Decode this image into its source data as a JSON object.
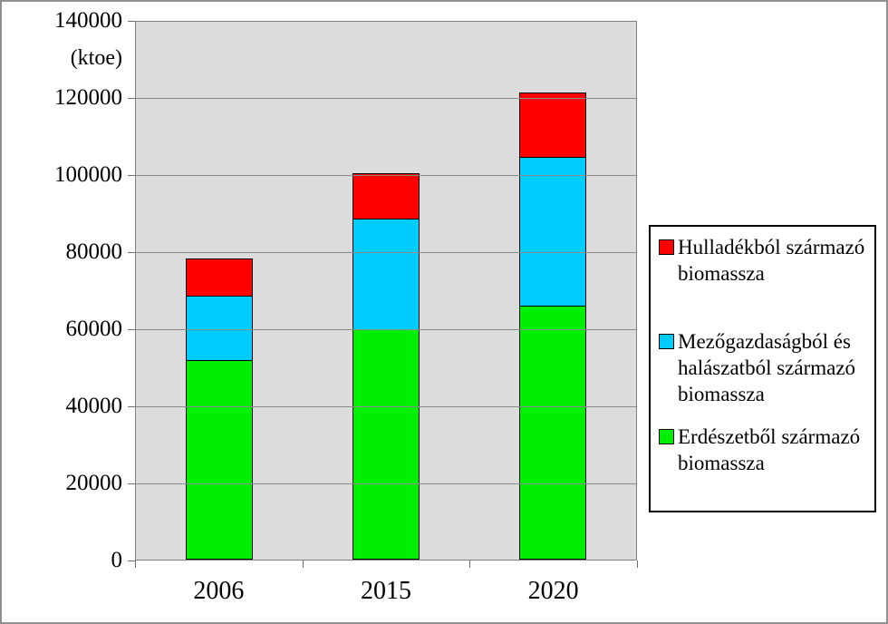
{
  "chart_data": {
    "type": "bar",
    "stacked": true,
    "title": "",
    "categories": [
      "2006",
      "2015",
      "2020"
    ],
    "series": [
      {
        "name": "Hulladékból származó biomassza",
        "legend_label": "Hulladékból származó\nbiomassza",
        "color": "#ff0000",
        "values": [
          10000,
          12000,
          17000
        ]
      },
      {
        "name": "Mezőgazdaságból és halászatból származó biomassza",
        "legend_label": "Mezőgazdaságból és\nhalászatból származó\nbiomassza",
        "color": "#00ccff",
        "values": [
          17000,
          29000,
          39000
        ]
      },
      {
        "name": "Erdészetből származó biomassza",
        "legend_label": "Erdészetből származó\nbiomassza",
        "color": "#00ee00",
        "values": [
          52000,
          60000,
          66000
        ]
      }
    ],
    "stack_order_bottom_to_top": [
      "Erdészetből származó biomassza",
      "Mezőgazdaságból és halászatból származó biomassza",
      "Hulladékból származó biomassza"
    ],
    "y_axis": {
      "min": 0,
      "max": 140000,
      "tick_step": 20000,
      "tick_labels": [
        "140000",
        "120000",
        "100000",
        "80000",
        "60000",
        "40000",
        "20000",
        "0"
      ],
      "unit": "(ktoe)"
    },
    "x_axis": {
      "tick_labels": [
        "2006",
        "2015",
        "2020"
      ]
    },
    "legend_position": "right",
    "grid": true,
    "plot_background": "#dcdcdc",
    "gridline_color": "#8a8a8a"
  }
}
